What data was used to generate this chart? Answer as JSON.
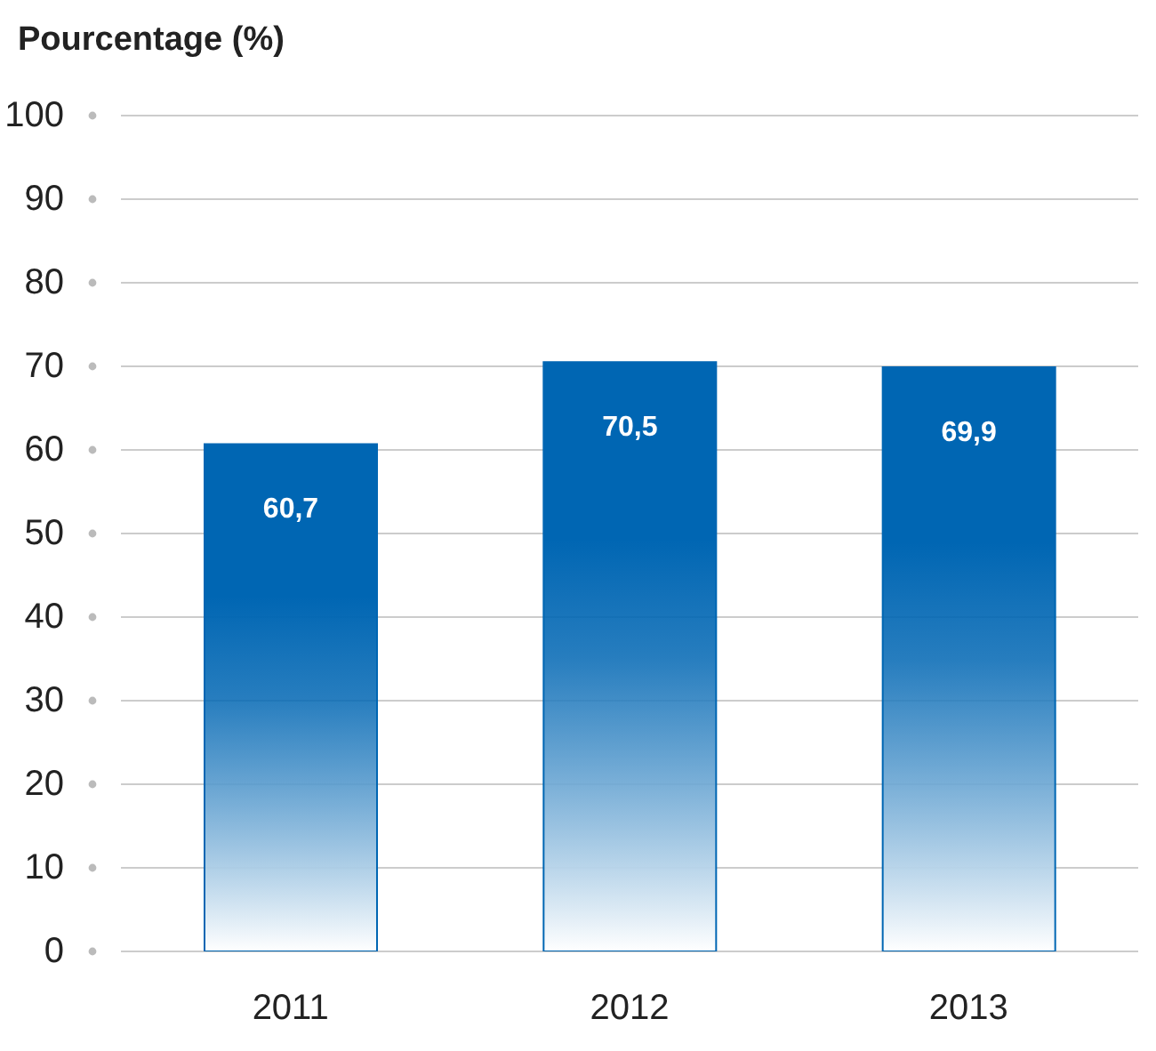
{
  "chart_data": {
    "type": "bar",
    "ylabel": "Pourcentage (%)",
    "categories": [
      "2011",
      "2012",
      "2013"
    ],
    "values": [
      60.7,
      70.5,
      69.9
    ],
    "value_labels": [
      "60,7",
      "70,5",
      "69,9"
    ],
    "color": "#0066b3",
    "ylim": [
      0,
      100
    ],
    "yticks": [
      0,
      10,
      20,
      30,
      40,
      50,
      60,
      70,
      80,
      90,
      100
    ],
    "grid": "y"
  }
}
